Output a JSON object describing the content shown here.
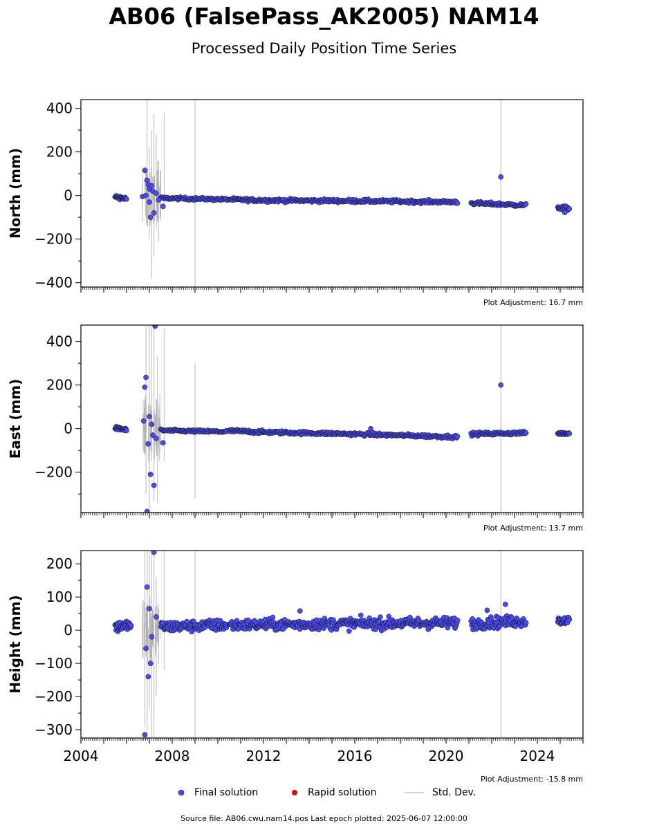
{
  "title": "AB06 (FalsePass_AK2005) NAM14",
  "subtitle": "Processed Daily Position Time Series",
  "footer": "Source file: AB06.cwu.nam14.pos  Last epoch plotted: 2025-06-07 12:00:00",
  "legend": {
    "final": "Final solution",
    "rapid": "Rapid solution",
    "std": "Std. Dev."
  },
  "colors": {
    "final": "#4a4af0",
    "rapid": "#e00000",
    "std": "#c8c8c8"
  },
  "chart_data": [
    {
      "type": "scatter",
      "ylabel": "North (mm)",
      "adjustment": "Plot Adjustment: 16.7 mm",
      "xlim": [
        2004,
        2026
      ],
      "ylim": [
        -420,
        440
      ],
      "xticks": [
        2004,
        2008,
        2012,
        2016,
        2020,
        2024
      ],
      "yticks": [
        -400,
        -200,
        0,
        200,
        400
      ],
      "ytick_labels": [
        "−400",
        "−200",
        "0",
        "200",
        "400"
      ],
      "segments": [
        {
          "x": [
            2005.5,
            2006.0
          ],
          "y": [
            -5,
            -15
          ],
          "scatter": 5,
          "n": 25
        },
        {
          "x": [
            2007.5,
            2009.0
          ],
          "y": [
            -12,
            -15
          ],
          "scatter": 4,
          "n": 45
        },
        {
          "x": [
            2009.0,
            2010.4
          ],
          "y": [
            -15,
            -18
          ],
          "scatter": 4,
          "n": 40
        },
        {
          "x": [
            2010.5,
            2012.0
          ],
          "y": [
            -18,
            -22
          ],
          "scatter": 5,
          "n": 50
        },
        {
          "x": [
            2012.0,
            2016.0
          ],
          "y": [
            -22,
            -25
          ],
          "scatter": 5,
          "n": 120
        },
        {
          "x": [
            2016.0,
            2020.5
          ],
          "y": [
            -25,
            -30
          ],
          "scatter": 5,
          "n": 130
        },
        {
          "x": [
            2021.1,
            2023.5
          ],
          "y": [
            -35,
            -45
          ],
          "scatter": 5,
          "n": 75
        },
        {
          "x": [
            2024.9,
            2025.4
          ],
          "y": [
            -55,
            -60
          ],
          "scatter": 6,
          "n": 22
        }
      ],
      "points": [
        [
          2006.8,
          115
        ],
        [
          2006.9,
          70
        ],
        [
          2006.95,
          50
        ],
        [
          2007.0,
          30
        ],
        [
          2007.05,
          -100
        ],
        [
          2007.1,
          45
        ],
        [
          2007.15,
          20
        ],
        [
          2007.2,
          -80
        ],
        [
          2007.3,
          10
        ],
        [
          2007.4,
          -20
        ],
        [
          2007.6,
          -50
        ],
        [
          2006.7,
          -5
        ],
        [
          2006.85,
          0
        ],
        [
          2007.0,
          -30
        ],
        [
          2022.4,
          85
        ],
        [
          2025.2,
          -78
        ]
      ],
      "errorbars": [
        [
          2006.9,
          -130,
          440
        ],
        [
          2007.0,
          -200,
          220
        ],
        [
          2007.1,
          -380,
          300
        ],
        [
          2007.2,
          -280,
          370
        ],
        [
          2007.3,
          -150,
          280
        ],
        [
          2007.4,
          -210,
          160
        ],
        [
          2007.65,
          -60,
          380
        ],
        [
          2009.0,
          -420,
          440
        ],
        [
          2022.4,
          -420,
          440
        ]
      ]
    },
    {
      "type": "scatter",
      "ylabel": "East (mm)",
      "adjustment": "Plot Adjustment: 13.7 mm",
      "xlim": [
        2004,
        2026
      ],
      "ylim": [
        -385,
        475
      ],
      "xticks": [
        2004,
        2008,
        2012,
        2016,
        2020,
        2024
      ],
      "yticks": [
        -200,
        0,
        200,
        400
      ],
      "ytick_labels": [
        "−200",
        "0",
        "200",
        "400"
      ],
      "segments": [
        {
          "x": [
            2005.5,
            2006.0
          ],
          "y": [
            2,
            -5
          ],
          "scatter": 5,
          "n": 25
        },
        {
          "x": [
            2007.5,
            2009.0
          ],
          "y": [
            -8,
            -12
          ],
          "scatter": 4,
          "n": 45
        },
        {
          "x": [
            2009.0,
            2010.4
          ],
          "y": [
            -12,
            -14
          ],
          "scatter": 4,
          "n": 40
        },
        {
          "x": [
            2010.5,
            2012.0
          ],
          "y": [
            -10,
            -16
          ],
          "scatter": 5,
          "n": 50
        },
        {
          "x": [
            2012.0,
            2016.0
          ],
          "y": [
            -16,
            -25
          ],
          "scatter": 5,
          "n": 120
        },
        {
          "x": [
            2016.0,
            2020.5
          ],
          "y": [
            -25,
            -38
          ],
          "scatter": 5,
          "n": 130
        },
        {
          "x": [
            2021.1,
            2023.5
          ],
          "y": [
            -25,
            -20
          ],
          "scatter": 5,
          "n": 75
        },
        {
          "x": [
            2024.9,
            2025.4
          ],
          "y": [
            -22,
            -22
          ],
          "scatter": 4,
          "n": 22
        }
      ],
      "points": [
        [
          2006.85,
          235
        ],
        [
          2006.8,
          190
        ],
        [
          2006.75,
          35
        ],
        [
          2007.0,
          55
        ],
        [
          2007.05,
          -210
        ],
        [
          2007.2,
          -260
        ],
        [
          2006.9,
          -380
        ],
        [
          2007.25,
          470
        ],
        [
          2007.3,
          -45
        ],
        [
          2007.6,
          -65
        ],
        [
          2006.95,
          -70
        ],
        [
          2007.1,
          20
        ],
        [
          2007.15,
          -30
        ],
        [
          2022.4,
          200
        ],
        [
          2016.7,
          0
        ]
      ],
      "errorbars": [
        [
          2006.85,
          -300,
          470
        ],
        [
          2007.0,
          -385,
          475
        ],
        [
          2007.1,
          -150,
          470
        ],
        [
          2007.2,
          -330,
          460
        ],
        [
          2007.35,
          -340,
          330
        ],
        [
          2007.65,
          -150,
          460
        ],
        [
          2009.0,
          -320,
          300
        ],
        [
          2022.4,
          -385,
          475
        ]
      ]
    },
    {
      "type": "scatter",
      "ylabel": "Height (mm)",
      "adjustment": "Plot Adjustment: -15.8 mm",
      "xlim": [
        2004,
        2026
      ],
      "ylim": [
        -325,
        240
      ],
      "xticks": [
        2004,
        2008,
        2012,
        2016,
        2020,
        2024
      ],
      "xtick_labels": [
        "2004",
        "2008",
        "2012",
        "2016",
        "2020",
        "2024"
      ],
      "yticks": [
        -300,
        -200,
        -100,
        0,
        100,
        200
      ],
      "ytick_labels": [
        "−300",
        "−200",
        "−100",
        "0",
        "100",
        "200"
      ],
      "segments": [
        {
          "x": [
            2005.5,
            2006.2
          ],
          "y": [
            10,
            15
          ],
          "scatter": 12,
          "n": 35
        },
        {
          "x": [
            2007.5,
            2010.4
          ],
          "y": [
            10,
            15
          ],
          "scatter": 12,
          "n": 110
        },
        {
          "x": [
            2010.5,
            2016.0
          ],
          "y": [
            15,
            20
          ],
          "scatter": 12,
          "n": 200
        },
        {
          "x": [
            2016.0,
            2020.5
          ],
          "y": [
            20,
            22
          ],
          "scatter": 12,
          "n": 170
        },
        {
          "x": [
            2021.1,
            2023.5
          ],
          "y": [
            20,
            28
          ],
          "scatter": 12,
          "n": 90
        },
        {
          "x": [
            2024.9,
            2025.4
          ],
          "y": [
            28,
            30
          ],
          "scatter": 8,
          "n": 25
        }
      ],
      "points": [
        [
          2006.9,
          130
        ],
        [
          2007.0,
          65
        ],
        [
          2007.05,
          -100
        ],
        [
          2006.95,
          -140
        ],
        [
          2006.8,
          -315
        ],
        [
          2007.2,
          235
        ],
        [
          2006.85,
          -55
        ],
        [
          2007.1,
          -20
        ],
        [
          2007.3,
          40
        ],
        [
          2013.6,
          58
        ],
        [
          2022.6,
          78
        ],
        [
          2021.8,
          60
        ]
      ],
      "errorbars": [
        [
          2006.8,
          -290,
          240
        ],
        [
          2006.9,
          -325,
          240
        ],
        [
          2007.0,
          -240,
          240
        ],
        [
          2007.1,
          -325,
          240
        ],
        [
          2007.2,
          -325,
          240
        ],
        [
          2007.3,
          -200,
          160
        ],
        [
          2007.65,
          -120,
          240
        ],
        [
          2009.0,
          -325,
          240
        ],
        [
          2022.4,
          -325,
          240
        ]
      ]
    }
  ]
}
